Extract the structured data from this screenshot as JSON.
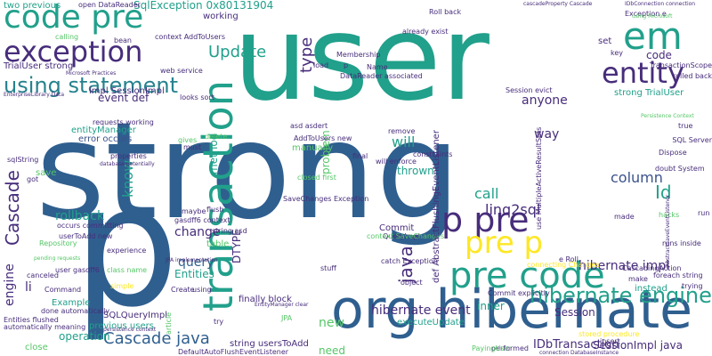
{
  "palette": {
    "navy": "#2f5f8f",
    "teal": "#21a08b",
    "purple": "#472d7b",
    "green": "#55c667",
    "lime": "#b8de29",
    "yellow": "#fde725",
    "blue": "#3b528b",
    "cyan": "#26828e"
  },
  "words": [
    {
      "id": "w-strong",
      "text": "strong",
      "color": "navy"
    },
    {
      "id": "w-user",
      "text": "user",
      "color": "teal"
    },
    {
      "id": "w-p",
      "text": "p",
      "color": "navy"
    },
    {
      "id": "w-org-hibernate",
      "text": "org hibernate",
      "color": "navy"
    },
    {
      "id": "w-transaction",
      "text": "transaction",
      "color": "teal"
    },
    {
      "id": "w-code-pre",
      "text": "code pre",
      "color": "teal"
    },
    {
      "id": "w-exception",
      "text": "exception",
      "color": "purple"
    },
    {
      "id": "w-pre-code",
      "text": "pre code",
      "color": "teal"
    },
    {
      "id": "w-p-pre",
      "text": "p pre",
      "color": "purple"
    },
    {
      "id": "w-pre-p",
      "text": "pre p",
      "color": "yellow"
    },
    {
      "id": "w-entity",
      "text": "entity",
      "color": "purple"
    },
    {
      "id": "w-em",
      "text": "em",
      "color": "teal"
    },
    {
      "id": "w-hibernate-engine",
      "text": "hibernate engine",
      "color": "teal"
    },
    {
      "id": "w-using-statement",
      "text": "using statement",
      "color": "cyan"
    },
    {
      "id": "w-cascade-java",
      "text": "Cascade java",
      "color": "navy"
    },
    {
      "id": "w-hibernate-event",
      "text": "hibernate event",
      "color": "purple"
    },
    {
      "id": "w-cascade",
      "text": "Cascade",
      "color": "purple"
    },
    {
      "id": "w-linq2sql",
      "text": "linq2sql",
      "color": "purple"
    },
    {
      "id": "w-hibernate-impl",
      "text": "hibernate impl",
      "color": "purple"
    },
    {
      "id": "w-idbtransaction",
      "text": "IDbTransaction",
      "color": "purple"
    },
    {
      "id": "w-update",
      "text": "Update",
      "color": "teal"
    },
    {
      "id": "w-sqlexception",
      "text": "SqlException 0x80131904",
      "color": "teal"
    },
    {
      "id": "w-type",
      "text": "type",
      "color": "purple"
    },
    {
      "id": "w-java-1",
      "text": "java",
      "color": "purple"
    },
    {
      "id": "w-column",
      "text": "column",
      "color": "blue"
    },
    {
      "id": "w-id",
      "text": "Id",
      "color": "teal"
    },
    {
      "id": "w-call",
      "text": "call",
      "color": "teal"
    },
    {
      "id": "w-will",
      "text": "will",
      "color": "teal"
    },
    {
      "id": "w-rollback",
      "text": "rollback",
      "color": "teal"
    },
    {
      "id": "w-change",
      "text": "change",
      "color": "purple"
    },
    {
      "id": "w-know",
      "text": "know",
      "color": "teal"
    },
    {
      "id": "w-query",
      "text": "query",
      "color": "navy"
    },
    {
      "id": "w-engine",
      "text": "engine",
      "color": "purple"
    },
    {
      "id": "w-operation",
      "text": "operation",
      "color": "teal"
    },
    {
      "id": "w-entities",
      "text": "Entities",
      "color": "teal"
    },
    {
      "id": "w-session",
      "text": "Session",
      "color": "purple"
    },
    {
      "id": "w-sessionimpl",
      "text": "SessionImpl java",
      "color": "purple"
    },
    {
      "id": "w-event-def",
      "text": "event def",
      "color": "purple"
    },
    {
      "id": "w-anyone",
      "text": "anyone",
      "color": "purple"
    },
    {
      "id": "w-way",
      "text": "way",
      "color": "purple"
    },
    {
      "id": "w-strong-trialuser",
      "text": "strong TrialUser",
      "color": "teal"
    },
    {
      "id": "w-code",
      "text": "code",
      "color": "purple"
    },
    {
      "id": "w-new",
      "text": "new",
      "color": "green"
    },
    {
      "id": "w-need",
      "text": "need",
      "color": "green"
    },
    {
      "id": "w-thrown",
      "text": "thrown",
      "color": "teal"
    },
    {
      "id": "w-problem",
      "text": "problem",
      "color": "green"
    },
    {
      "id": "w-method",
      "text": "method",
      "color": "teal"
    },
    {
      "id": "w-inner",
      "text": "inner",
      "color": "teal"
    },
    {
      "id": "w-li",
      "text": "li",
      "color": "purple"
    },
    {
      "id": "w-entitymanager",
      "text": "entityManager",
      "color": "teal"
    },
    {
      "id": "w-error-occurs",
      "text": "error occurs",
      "color": "blue"
    },
    {
      "id": "w-impl-sessionimpl",
      "text": "impl SessionImpl",
      "color": "purple"
    },
    {
      "id": "w-two-previous",
      "text": "two previous",
      "color": "teal"
    },
    {
      "id": "w-dtype",
      "text": "DTYPE",
      "color": "purple"
    },
    {
      "id": "w-commit",
      "text": "Commit",
      "color": "purple"
    },
    {
      "id": "w-finally-block",
      "text": "finally block",
      "color": "purple"
    },
    {
      "id": "w-string-userstoadd",
      "text": "string usersToAdd",
      "color": "purple"
    },
    {
      "id": "w-save",
      "text": "save",
      "color": "green"
    },
    {
      "id": "w-close",
      "text": "close",
      "color": "green"
    },
    {
      "id": "w-example",
      "text": "Example",
      "color": "teal"
    },
    {
      "id": "w-trialuser-strong",
      "text": "TrialUser strong",
      "color": "purple"
    },
    {
      "id": "w-sqlqueryimpl",
      "text": "SQLQueryImpl",
      "color": "purple"
    },
    {
      "id": "w-previous-users",
      "text": "previous users",
      "color": "teal"
    },
    {
      "id": "w-working",
      "text": "working",
      "color": "purple"
    },
    {
      "id": "w-already-exist",
      "text": "already exist",
      "color": "purple"
    },
    {
      "id": "w-roll-back",
      "text": "Roll back",
      "color": "purple"
    },
    {
      "id": "w-web-service",
      "text": "web service",
      "color": "purple"
    },
    {
      "id": "w-set",
      "text": "set",
      "color": "purple"
    },
    {
      "id": "w-key",
      "text": "key",
      "color": "purple"
    },
    {
      "id": "w-load",
      "text": "load",
      "color": "purple"
    },
    {
      "id": "w-true",
      "text": "true",
      "color": "purple"
    },
    {
      "id": "w-run",
      "text": "run",
      "color": "purple"
    },
    {
      "id": "w-instead",
      "text": "instead",
      "color": "teal"
    },
    {
      "id": "w-make",
      "text": "make",
      "color": "purple"
    },
    {
      "id": "w-sql-server",
      "text": "SQL Server",
      "color": "purple"
    },
    {
      "id": "w-asd-asdert",
      "text": "asd asdert",
      "color": "purple"
    },
    {
      "id": "w-addtousers-new",
      "text": "AddToUsers new",
      "color": "purple"
    },
    {
      "id": "w-manually",
      "text": "manually",
      "color": "green"
    },
    {
      "id": "w-final",
      "text": "final",
      "color": "purple"
    },
    {
      "id": "w-remove",
      "text": "remove",
      "color": "purple"
    },
    {
      "id": "w-constraints",
      "text": "constraints",
      "color": "purple"
    },
    {
      "id": "w-will-enforce",
      "text": "will enforce",
      "color": "purple"
    },
    {
      "id": "w-executeupdate",
      "text": "executeUpdate",
      "color": "teal"
    },
    {
      "id": "w-catch-exception",
      "text": "catch Exception",
      "color": "purple"
    },
    {
      "id": "w-queryimpl",
      "text": "QueryImpl",
      "color": "purple"
    },
    {
      "id": "w-string-asd",
      "text": "string asd",
      "color": "purple"
    },
    {
      "id": "w-table",
      "text": "table",
      "color": "green"
    },
    {
      "id": "w-stuff",
      "text": "stuff",
      "color": "purple"
    },
    {
      "id": "w-try",
      "text": "try",
      "color": "purple"
    },
    {
      "id": "w-maybe",
      "text": "maybe",
      "color": "purple"
    },
    {
      "id": "w-flush",
      "text": "flush",
      "color": "purple"
    },
    {
      "id": "w-occurs-committing",
      "text": "occurs committing",
      "color": "purple"
    },
    {
      "id": "w-usertoadd-new",
      "text": "userToAdd new",
      "color": "purple"
    },
    {
      "id": "w-calling",
      "text": "calling",
      "color": "green"
    },
    {
      "id": "w-bean",
      "text": "bean",
      "color": "purple"
    },
    {
      "id": "w-gives",
      "text": "gives",
      "color": "green"
    },
    {
      "id": "w-must",
      "text": "must",
      "color": "purple"
    },
    {
      "id": "w-delete",
      "text": "delete",
      "color": "green"
    },
    {
      "id": "w-properties",
      "text": "properties",
      "color": "purple"
    },
    {
      "id": "w-requests-working",
      "text": "requests working",
      "color": "purple"
    },
    {
      "id": "w-looks-sort",
      "text": "looks sort",
      "color": "purple"
    },
    {
      "id": "w-got",
      "text": "got",
      "color": "purple"
    },
    {
      "id": "w-sqlstring",
      "text": "sqlString",
      "color": "purple"
    },
    {
      "id": "w-session-evict",
      "text": "Session evict",
      "color": "purple"
    },
    {
      "id": "w-enterprise",
      "text": "EnterpriseLibrary Data",
      "color": "purple"
    },
    {
      "id": "w-context-addtousers",
      "text": "context AddToUsers",
      "color": "purple"
    },
    {
      "id": "w-savechanges",
      "text": "SaveChanges Exception",
      "color": "purple"
    },
    {
      "id": "w-gasdff6-context",
      "text": "gasdff6 context",
      "color": "purple"
    },
    {
      "id": "w-context-savechanges",
      "text": "context SaveChanges",
      "color": "green"
    },
    {
      "id": "w-repository",
      "text": "Repository",
      "color": "green"
    },
    {
      "id": "w-databinding",
      "text": "database potentially",
      "color": "purple"
    },
    {
      "id": "w-closed-first",
      "text": "closed first",
      "color": "green"
    },
    {
      "id": "w-canceled",
      "text": "canceled",
      "color": "purple"
    },
    {
      "id": "w-user-gasdff6",
      "text": "user gasdff6",
      "color": "purple"
    },
    {
      "id": "w-pending",
      "text": "pending requests",
      "color": "green"
    },
    {
      "id": "w-command",
      "text": "Command",
      "color": "purple"
    },
    {
      "id": "w-done-auto",
      "text": "done automatically",
      "color": "purple"
    },
    {
      "id": "w-entities-flushed",
      "text": "Entities flushed",
      "color": "purple"
    },
    {
      "id": "w-auto-rolled",
      "text": "automatically meaning",
      "color": "purple"
    },
    {
      "id": "w-experience",
      "text": "experience",
      "color": "purple"
    },
    {
      "id": "w-create",
      "text": "Create",
      "color": "purple"
    },
    {
      "id": "w-using",
      "text": "using",
      "color": "purple"
    },
    {
      "id": "w-def-abstract",
      "text": "def AbstractFlushingEventListener",
      "color": "purple"
    },
    {
      "id": "w-transactions",
      "text": "TransactionScope",
      "color": "purple"
    },
    {
      "id": "w-rolled-back",
      "text": "rolled back",
      "color": "purple"
    },
    {
      "id": "w-hacks",
      "text": "hacks",
      "color": "green"
    },
    {
      "id": "w-made",
      "text": "made",
      "color": "purple"
    },
    {
      "id": "w-runs-inside",
      "text": "runs inside",
      "color": "purple"
    },
    {
      "id": "w-trying",
      "text": "trying",
      "color": "purple"
    },
    {
      "id": "w-foreach-string",
      "text": "foreach string",
      "color": "purple"
    },
    {
      "id": "w-dispose",
      "text": "Dispose",
      "color": "purple"
    },
    {
      "id": "w-doubt-system",
      "text": "doubt System",
      "color": "purple"
    },
    {
      "id": "w-cascadingaction",
      "text": "CascadingAction",
      "color": "purple"
    },
    {
      "id": "w-exception-e",
      "text": "Exception e",
      "color": "purple"
    },
    {
      "id": "w-cascade-property",
      "text": "cascadeProperty Cascade",
      "color": "purple"
    },
    {
      "id": "w-idbconnection",
      "text": "IDbConnection connection",
      "color": "purple"
    },
    {
      "id": "w-open-datareader",
      "text": "open DataReader",
      "color": "purple"
    },
    {
      "id": "w-datareader-assoc",
      "text": "DataReader associated",
      "color": "purple"
    },
    {
      "id": "w-name",
      "text": "Name",
      "color": "purple"
    },
    {
      "id": "w-p-small",
      "text": "p",
      "color": "purple"
    },
    {
      "id": "w-membership",
      "text": "Membership",
      "color": "purple"
    },
    {
      "id": "w-using-microsoft",
      "text": "using Microsoft",
      "color": "green"
    },
    {
      "id": "w-persistence-context",
      "text": "Persistence Context",
      "color": "green"
    },
    {
      "id": "w-abstract-save",
      "text": "AbstractSaveEventListener",
      "color": "purple"
    },
    {
      "id": "w-default-auto",
      "text": "DefaultAutoFlushEventListener",
      "color": "purple"
    },
    {
      "id": "w-stored-procedure",
      "text": "stored procedure",
      "color": "yellow"
    },
    {
      "id": "w-insert",
      "text": "insert",
      "color": "purple"
    },
    {
      "id": "w-performed",
      "text": "performed",
      "color": "purple"
    },
    {
      "id": "w-paying-user",
      "text": "PayingUser",
      "color": "green"
    },
    {
      "id": "w-connection-db",
      "text": "connection DatabaseInstance",
      "color": "purple"
    },
    {
      "id": "w-commit-explicitly",
      "text": "Commit explicitly",
      "color": "purple"
    },
    {
      "id": "w-connecting-changes",
      "text": "connecting Changes",
      "color": "yellow"
    },
    {
      "id": "w-e-roll",
      "text": "e Roll",
      "color": "purple"
    },
    {
      "id": "w-object",
      "text": "object",
      "color": "purple"
    },
    {
      "id": "w-jpa-impl",
      "text": "JPA implementation",
      "color": "purple"
    },
    {
      "id": "w-jpa",
      "text": "JPA",
      "color": "green"
    },
    {
      "id": "w-article",
      "text": "article",
      "color": "green"
    },
    {
      "id": "w-entitymanager-clear",
      "text": "EntityManager clear",
      "color": "purple"
    },
    {
      "id": "w-persistence",
      "text": "persistence context",
      "color": "purple"
    },
    {
      "id": "w-class-name",
      "text": "class name",
      "color": "green"
    },
    {
      "id": "w-simple",
      "text": "simple",
      "color": "yellow"
    },
    {
      "id": "w-microsoft-practices",
      "text": "Microsoft Practices",
      "color": "purple"
    },
    {
      "id": "w-use-multiple",
      "text": "use MultipleActiveResultSets",
      "color": "purple"
    }
  ]
}
